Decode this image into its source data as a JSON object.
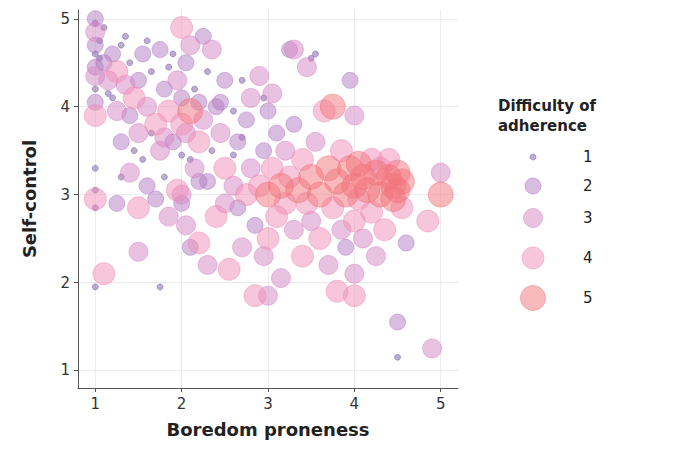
{
  "chart_data": {
    "type": "scatter",
    "xlabel": "Boredom proneness",
    "ylabel": "Self-control",
    "xlim": [
      0.8,
      5.2
    ],
    "xticks": [
      1,
      2,
      3,
      4,
      5
    ],
    "ylim": [
      0.8,
      5.1
    ],
    "yticks": [
      1,
      2,
      3,
      4,
      5
    ],
    "grid": true,
    "x": [
      1,
      1,
      1,
      1,
      1,
      1,
      1,
      1,
      1,
      1,
      1,
      1,
      1,
      1,
      1,
      1.1,
      1.05,
      1.1,
      1.1,
      1.15,
      1.2,
      1.2,
      1.25,
      1.25,
      1.3,
      1.3,
      1.3,
      1.35,
      1.4,
      1.4,
      1.45,
      1.5,
      1.5,
      1.5,
      1.5,
      1.55,
      1.55,
      1.6,
      1.6,
      1.65,
      1.7,
      1.7,
      1.75,
      1.75,
      1.75,
      1.8,
      1.8,
      1.85,
      1.85,
      1.9,
      1.9,
      1.95,
      1.95,
      2,
      2,
      2,
      2,
      2,
      2,
      2.05,
      2.05,
      2.1,
      2.1,
      2.1,
      2.15,
      2.15,
      2.2,
      2.2,
      2.2,
      2.25,
      2.25,
      2.3,
      2.3,
      2.35,
      2.35,
      2.4,
      2.4,
      2.45,
      2.5,
      2.5,
      2.5,
      2.55,
      2.6,
      2.6,
      2.65,
      2.7,
      2.7,
      2.75,
      2.75,
      2.8,
      2.8,
      2.85,
      2.85,
      2.9,
      2.9,
      2.95,
      2.95,
      3,
      3,
      3,
      3,
      3.05,
      3.05,
      3.1,
      3.1,
      3.15,
      3.15,
      3.2,
      3.2,
      3.25,
      3.25,
      3.3,
      3.3,
      3.35,
      3.4,
      3.4,
      3.45,
      3.45,
      3.5,
      3.5,
      3.5,
      3.55,
      3.6,
      3.6,
      3.65,
      3.7,
      3.7,
      3.75,
      3.75,
      3.8,
      3.8,
      3.85,
      3.85,
      3.9,
      3.9,
      3.95,
      3.95,
      4,
      4,
      4,
      4,
      4,
      4.05,
      4.05,
      4.1,
      4.1,
      4.15,
      4.2,
      4.2,
      4.25,
      4.25,
      4.3,
      4.3,
      4.35,
      4.4,
      4.4,
      4.45,
      4.45,
      4.5,
      4.5,
      4.5,
      4.5,
      4.55,
      4.55,
      4.6,
      4.85,
      4.9,
      5,
      5,
      3.55,
      1.05,
      1.15,
      1.35,
      1.45,
      1.6,
      1.65,
      1.85,
      2.1,
      2.3,
      2.6,
      2.45,
      1.8,
      2.05,
      2.2,
      1.4,
      1.25,
      2.65,
      3.3,
      2.95,
      2.7
    ],
    "y": [
      5,
      4.95,
      4.85,
      4.7,
      4.6,
      4.45,
      4.35,
      4.2,
      4.05,
      3.9,
      3.3,
      3.05,
      2.95,
      2.85,
      1.95,
      2.1,
      4.75,
      4.5,
      4.9,
      4.3,
      4.6,
      4.1,
      3.95,
      4.4,
      4.7,
      3.6,
      3.2,
      4.25,
      3.9,
      4.5,
      4.1,
      3.7,
      4.3,
      2.85,
      2.35,
      4.6,
      3.4,
      4,
      3.1,
      4.4,
      3.8,
      2.95,
      4.65,
      3.5,
      1.95,
      4.2,
      3.2,
      3.95,
      2.75,
      4.6,
      3.6,
      4.3,
      3.05,
      4.9,
      4.1,
      3.8,
      3.45,
      3,
      2.9,
      4.5,
      3.7,
      4.7,
      3.95,
      2.4,
      4.2,
      3.3,
      4.05,
      3.6,
      2.45,
      4.8,
      3.85,
      3.15,
      2.2,
      4.65,
      3.5,
      4,
      2.75,
      3.7,
      4.3,
      3.3,
      2.9,
      2.15,
      3.95,
      3.1,
      3.6,
      4.3,
      2.4,
      3,
      3.85,
      4.1,
      3.3,
      2.65,
      1.85,
      4.35,
      3.1,
      3.5,
      2.3,
      3.95,
      3,
      2.5,
      1.85,
      4.15,
      3.3,
      2.75,
      3.7,
      3.1,
      2.05,
      3.5,
      2.9,
      4.65,
      3.2,
      2.6,
      3.8,
      3.05,
      3.4,
      2.3,
      4.45,
      2.9,
      3.2,
      4.55,
      2.7,
      3.6,
      3,
      2.5,
      3.95,
      3.3,
      2.2,
      4,
      2.85,
      3.15,
      1.9,
      3.5,
      2.6,
      3,
      2.4,
      3.3,
      4.3,
      3.9,
      3.1,
      2.7,
      2.1,
      1.85,
      3.35,
      2.95,
      3.2,
      2.5,
      3.05,
      3.4,
      2.8,
      3.25,
      2.3,
      3,
      3.3,
      2.6,
      3.2,
      3.4,
      2.95,
      3.1,
      3.25,
      3.05,
      1.55,
      1.15,
      2.85,
      3.15,
      2.45,
      2.7,
      1.25,
      3.25,
      3,
      4.6,
      4.55,
      4.15,
      4.8,
      3.5,
      4.75,
      3.7,
      4.45,
      3.4,
      4.4,
      3.45,
      4.05,
      3.65,
      2.65,
      3.15,
      3.25,
      2.9,
      2.85,
      4.65,
      4.1,
      3.65
    ],
    "size": [
      2,
      1,
      3,
      2,
      1,
      2,
      3,
      1,
      2,
      4,
      1,
      1,
      4,
      1,
      1,
      4,
      1,
      2,
      1,
      3,
      2,
      1,
      3,
      4,
      1,
      2,
      1,
      3,
      2,
      1,
      4,
      3,
      2,
      4,
      3,
      2,
      1,
      3,
      2,
      1,
      4,
      2,
      2,
      3,
      1,
      2,
      1,
      4,
      3,
      1,
      2,
      3,
      4,
      4,
      2,
      4,
      1,
      3,
      2,
      2,
      3,
      3,
      5,
      2,
      1,
      3,
      2,
      4,
      4,
      2,
      3,
      2,
      3,
      3,
      1,
      2,
      4,
      3,
      2,
      4,
      3,
      4,
      1,
      3,
      2,
      1,
      3,
      4,
      2,
      3,
      3,
      2,
      4,
      3,
      4,
      2,
      3,
      2,
      5,
      4,
      3,
      3,
      4,
      4,
      2,
      5,
      3,
      3,
      4,
      2,
      4,
      3,
      2,
      5,
      4,
      4,
      3,
      4,
      5,
      1,
      3,
      3,
      5,
      4,
      4,
      5,
      3,
      5,
      4,
      5,
      4,
      4,
      3,
      5,
      2,
      5,
      2,
      3,
      5,
      4,
      3,
      4,
      5,
      4,
      5,
      3,
      5,
      4,
      4,
      5,
      3,
      5,
      4,
      4,
      5,
      4,
      5,
      5,
      5,
      5,
      2,
      1,
      4,
      5,
      2,
      4,
      3,
      3,
      5,
      1,
      1,
      1,
      1,
      1,
      1,
      1,
      1,
      1,
      1,
      1,
      2,
      3,
      3,
      2,
      3,
      2,
      2,
      3,
      1,
      1
    ],
    "size_legend": {
      "title": "Difficulty of adherence",
      "values": [
        1,
        2,
        3,
        4,
        5
      ],
      "colors": [
        "#7a5aa6",
        "#b27cc4",
        "#d585c3",
        "#f08db5",
        "#f2737c"
      ]
    }
  }
}
